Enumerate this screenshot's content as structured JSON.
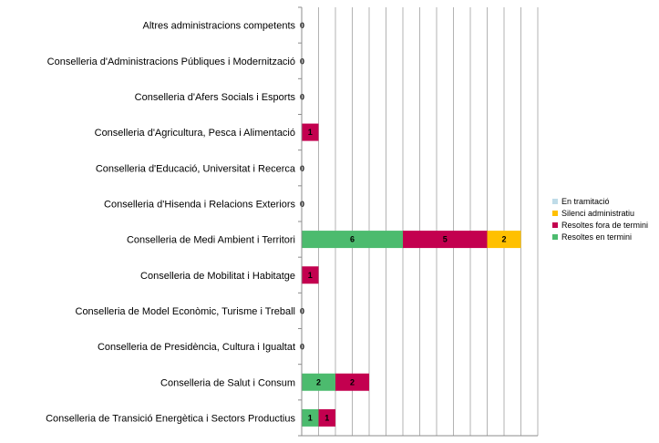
{
  "chart_data": {
    "type": "bar",
    "orientation": "horizontal",
    "stacked": true,
    "categories": [
      "Altres  administracions competents",
      "Conselleria d'Administracions Públiques i Modernització",
      "Conselleria d'Afers Socials i Esports",
      "Conselleria d'Agricultura, Pesca i Alimentació",
      "Conselleria d'Educació, Universitat i Recerca",
      "Conselleria d'Hisenda i Relacions Exteriors",
      "Conselleria de Medi Ambient i Territori",
      "Conselleria de Mobilitat i Habitatge",
      "Conselleria de Model Econòmic, Turisme i Treball",
      "Conselleria de Presidència, Cultura i Igualtat",
      "Conselleria de Salut i Consum",
      "Conselleria de Transició Energètica i Sectors Productius"
    ],
    "series": [
      {
        "name": "Resoltes en termini",
        "color": "#4cbb6e",
        "values": [
          0,
          0,
          0,
          0,
          0,
          0,
          6,
          0,
          0,
          0,
          2,
          1
        ]
      },
      {
        "name": "Resoltes fora de termini",
        "color": "#c3004f",
        "values": [
          0,
          0,
          0,
          1,
          0,
          0,
          5,
          1,
          0,
          0,
          2,
          1
        ]
      },
      {
        "name": "Silenci administratiu",
        "color": "#ffc000",
        "values": [
          0,
          0,
          0,
          0,
          0,
          0,
          2,
          0,
          0,
          0,
          0,
          0
        ]
      },
      {
        "name": "En tramitació",
        "color": "#bfdce8",
        "values": [
          0,
          0,
          0,
          0,
          0,
          0,
          0,
          0,
          0,
          0,
          0,
          0
        ]
      }
    ],
    "legend_order": [
      "En tramitació",
      "Silenci administratiu",
      "Resoltes fora de termini",
      "Resoltes en termini"
    ],
    "xlim": [
      0,
      14
    ],
    "grid": true,
    "legend_position": "right",
    "title": "",
    "xlabel": "",
    "ylabel": ""
  }
}
